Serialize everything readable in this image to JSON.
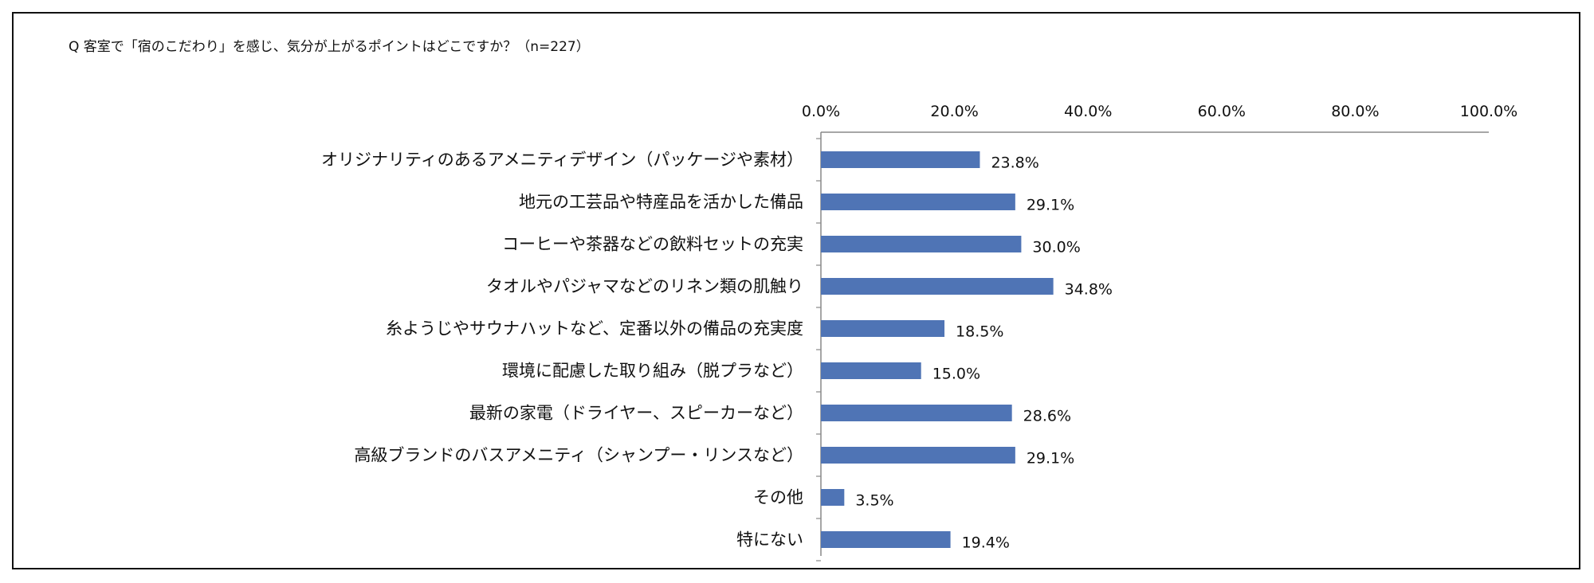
{
  "chart_data": {
    "type": "bar",
    "orientation": "horizontal",
    "title": "Q 客室で「宿のこだわり」を感じ、気分が上がるポイントはどこですか？（n=227）",
    "xlabel": "",
    "ylabel": "",
    "xlim": [
      0,
      100
    ],
    "ticks": [
      "0.0%",
      "20.0%",
      "40.0%",
      "60.0%",
      "80.0%",
      "100.0%"
    ],
    "tick_position": "top",
    "grid": false,
    "legend": "none",
    "bar_color": "#4F74B5",
    "categories": [
      "オリジナリティのあるアメニティデザイン（パッケージや素材）",
      "地元の工芸品や特産品を活かした備品",
      "コーヒーや茶器などの飲料セットの充実",
      "タオルやパジャマなどのリネン類の肌触り",
      "糸ようじやサウナハットなど、定番以外の備品の充実度",
      "環境に配慮した取り組み（脱プラなど）",
      "最新の家電（ドライヤー、スピーカーなど）",
      "高級ブランドのバスアメニティ（シャンプー・リンスなど）",
      "その他",
      "特にない"
    ],
    "values": [
      23.8,
      29.1,
      30.0,
      34.8,
      18.5,
      15.0,
      28.6,
      29.1,
      3.5,
      19.4
    ],
    "value_labels": [
      "23.8%",
      "29.1%",
      "30.0%",
      "34.8%",
      "18.5%",
      "15.0%",
      "28.6%",
      "29.1%",
      "3.5%",
      "19.4%"
    ]
  }
}
